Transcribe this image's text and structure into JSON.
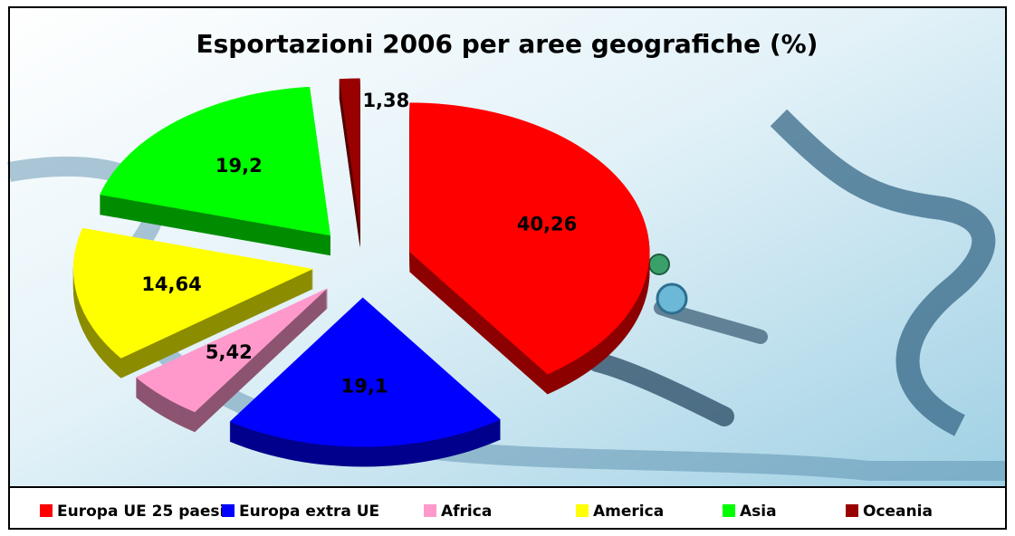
{
  "chart_data": {
    "type": "pie",
    "title": "Esportazioni 2006 per aree geografiche (%)",
    "categories": [
      "Europa UE 25 paesi",
      "Europa extra UE",
      "Africa",
      "America",
      "Asia",
      "Oceania"
    ],
    "values": [
      40.26,
      19.1,
      5.42,
      14.64,
      19.2,
      1.38
    ],
    "value_labels": [
      "40,26",
      "19,1",
      "5,42",
      "14,64",
      "19,2",
      "1,38"
    ],
    "colors": [
      "#ff0000",
      "#0000ff",
      "#ff99cc",
      "#ffff00",
      "#00ff00",
      "#990000"
    ],
    "legend": "bottom"
  }
}
